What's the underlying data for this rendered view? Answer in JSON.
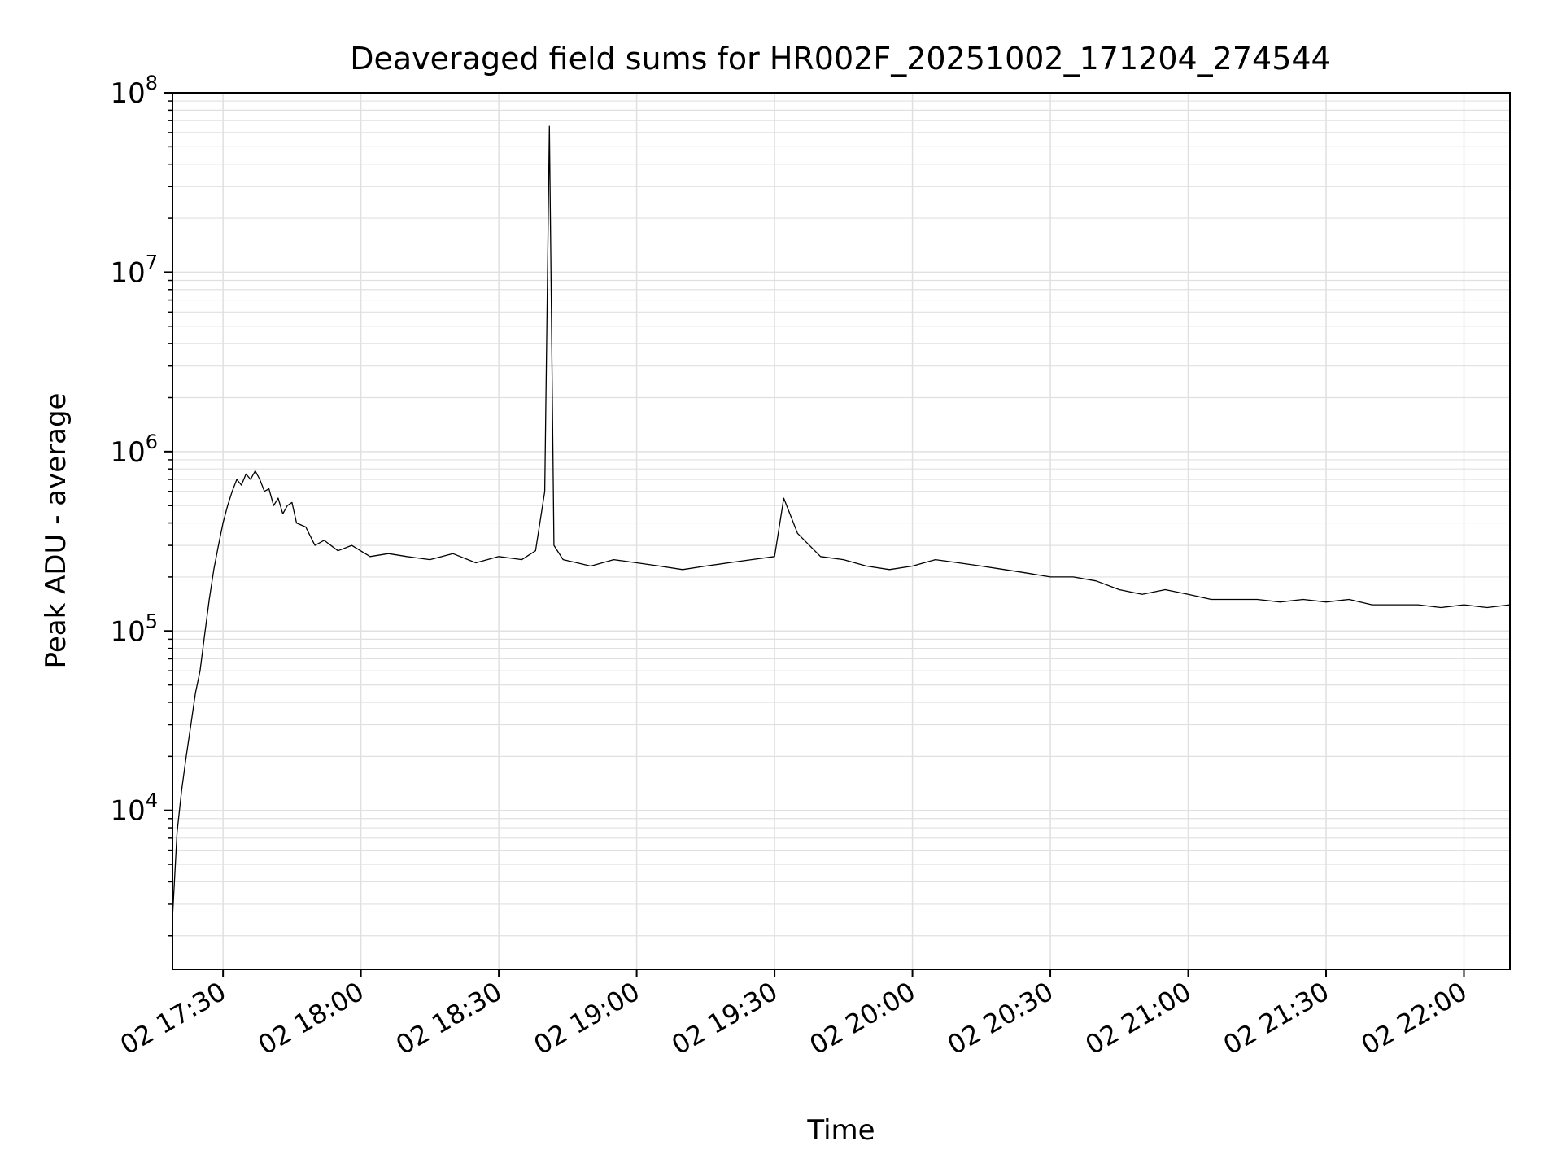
{
  "chart_data": {
    "type": "line",
    "title": "Deaveraged field sums for HR002F_20251002_171204_274544",
    "xlabel": "Time",
    "ylabel": "Peak ADU - average",
    "yscale": "log",
    "ylim": [
      1300,
      100000000
    ],
    "xlim": [
      "2025-10-02 17:19",
      "2025-10-02 22:10"
    ],
    "grid": true,
    "x_tick_labels": [
      "02 17:30",
      "02 18:00",
      "02 18:30",
      "02 19:00",
      "02 19:30",
      "02 20:00",
      "02 20:30",
      "02 21:00",
      "02 21:30",
      "02 22:00"
    ],
    "y_tick_labels": [
      {
        "base": "10",
        "exp": "4"
      },
      {
        "base": "10",
        "exp": "5"
      },
      {
        "base": "10",
        "exp": "6"
      },
      {
        "base": "10",
        "exp": "7"
      },
      {
        "base": "10",
        "exp": "8"
      }
    ],
    "line_color": "#000000",
    "grid_color": "#e0e0e0",
    "series": [
      {
        "x": [
          "2025-10-02 17:19",
          "2025-10-02 17:20",
          "2025-10-02 17:21",
          "2025-10-02 17:22",
          "2025-10-02 17:23",
          "2025-10-02 17:24",
          "2025-10-02 17:25",
          "2025-10-02 17:26",
          "2025-10-02 17:27",
          "2025-10-02 17:28",
          "2025-10-02 17:29",
          "2025-10-02 17:30",
          "2025-10-02 17:31",
          "2025-10-02 17:32",
          "2025-10-02 17:33",
          "2025-10-02 17:34",
          "2025-10-02 17:35",
          "2025-10-02 17:36",
          "2025-10-02 17:37",
          "2025-10-02 17:38",
          "2025-10-02 17:39",
          "2025-10-02 17:40",
          "2025-10-02 17:41",
          "2025-10-02 17:42",
          "2025-10-02 17:43",
          "2025-10-02 17:44",
          "2025-10-02 17:45",
          "2025-10-02 17:46",
          "2025-10-02 17:48",
          "2025-10-02 17:50",
          "2025-10-02 17:52",
          "2025-10-02 17:55",
          "2025-10-02 17:58",
          "2025-10-02 18:02",
          "2025-10-02 18:06",
          "2025-10-02 18:10",
          "2025-10-02 18:15",
          "2025-10-02 18:20",
          "2025-10-02 18:25",
          "2025-10-02 18:30",
          "2025-10-02 18:35",
          "2025-10-02 18:38",
          "2025-10-02 18:40",
          "2025-10-02 18:41",
          "2025-10-02 18:42",
          "2025-10-02 18:44",
          "2025-10-02 18:47",
          "2025-10-02 18:50",
          "2025-10-02 18:55",
          "2025-10-02 19:00",
          "2025-10-02 19:05",
          "2025-10-02 19:10",
          "2025-10-02 19:15",
          "2025-10-02 19:20",
          "2025-10-02 19:25",
          "2025-10-02 19:30",
          "2025-10-02 19:32",
          "2025-10-02 19:35",
          "2025-10-02 19:40",
          "2025-10-02 19:45",
          "2025-10-02 19:50",
          "2025-10-02 19:55",
          "2025-10-02 20:00",
          "2025-10-02 20:05",
          "2025-10-02 20:10",
          "2025-10-02 20:15",
          "2025-10-02 20:20",
          "2025-10-02 20:25",
          "2025-10-02 20:30",
          "2025-10-02 20:35",
          "2025-10-02 20:40",
          "2025-10-02 20:45",
          "2025-10-02 20:50",
          "2025-10-02 20:55",
          "2025-10-02 21:00",
          "2025-10-02 21:05",
          "2025-10-02 21:10",
          "2025-10-02 21:15",
          "2025-10-02 21:20",
          "2025-10-02 21:25",
          "2025-10-02 21:30",
          "2025-10-02 21:35",
          "2025-10-02 21:40",
          "2025-10-02 21:45",
          "2025-10-02 21:50",
          "2025-10-02 21:55",
          "2025-10-02 22:00",
          "2025-10-02 22:05",
          "2025-10-02 22:10"
        ],
        "y": [
          2500,
          7500,
          13000,
          20000,
          30000,
          45000,
          60000,
          95000,
          150000,
          220000,
          300000,
          400000,
          500000,
          600000,
          700000,
          650000,
          750000,
          700000,
          780000,
          700000,
          600000,
          620000,
          500000,
          550000,
          450000,
          500000,
          520000,
          400000,
          380000,
          300000,
          320000,
          280000,
          300000,
          260000,
          270000,
          260000,
          250000,
          270000,
          240000,
          260000,
          250000,
          280000,
          600000,
          65000000,
          300000,
          250000,
          240000,
          230000,
          250000,
          240000,
          230000,
          220000,
          230000,
          240000,
          250000,
          260000,
          550000,
          350000,
          260000,
          250000,
          230000,
          220000,
          230000,
          250000,
          240000,
          230000,
          220000,
          210000,
          200000,
          200000,
          190000,
          170000,
          160000,
          170000,
          160000,
          150000,
          150000,
          150000,
          145000,
          150000,
          145000,
          150000,
          140000,
          140000,
          140000,
          135000,
          140000,
          135000,
          140000
        ]
      }
    ]
  }
}
